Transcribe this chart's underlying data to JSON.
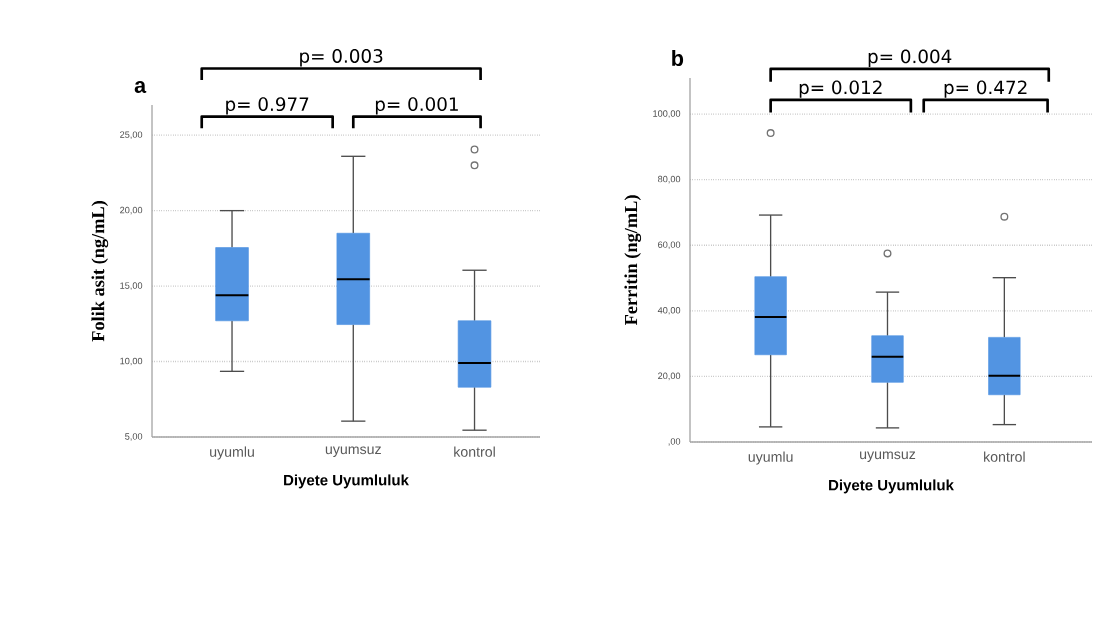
{
  "chart_data": [
    {
      "type": "box",
      "title": "a",
      "xlabel": "Diyete Uyumluluk",
      "ylabel": "Folik asit (ng/mL)",
      "categories": [
        "uyumlu",
        "uyumsuz",
        "kontrol"
      ],
      "series": [
        {
          "color": "#5294e2",
          "boxes": [
            {
              "low": 9.35,
              "q1": 12.7,
              "median": 14.4,
              "q3": 17.55,
              "high": 20.0
            },
            {
              "low": 6.05,
              "q1": 12.45,
              "median": 15.45,
              "q3": 18.5,
              "high": 23.6
            },
            {
              "low": 5.45,
              "q1": 8.3,
              "median": 9.9,
              "q3": 12.7,
              "high": 16.05,
              "outliers": [
                24.05,
                23.0
              ]
            }
          ]
        }
      ],
      "ylim": [
        5,
        27
      ],
      "yticks": [
        {
          "value": 5,
          "label": "5,00"
        },
        {
          "value": 10,
          "label": "10,00"
        },
        {
          "value": 15,
          "label": "15,00"
        },
        {
          "value": 20,
          "label": "20,00"
        },
        {
          "value": 25,
          "label": "25,00"
        }
      ],
      "grid": "y",
      "marker": "circle",
      "annotations": [
        "p= 0.003",
        "p= 0.977",
        "p= 0.001"
      ]
    },
    {
      "type": "box",
      "title": "b",
      "xlabel": "Diyete Uyumluluk",
      "ylabel": "Ferritin (ng/mL)",
      "categories": [
        "uyumlu",
        "uyumsuz",
        "kontrol"
      ],
      "series": [
        {
          "color": "#5294e2",
          "boxes": [
            {
              "low": 4.6,
              "q1": 26.6,
              "median": 38.1,
              "q3": 50.4,
              "high": 69.2,
              "outliers": [
                94.2
              ]
            },
            {
              "low": 4.3,
              "q1": 18.2,
              "median": 26.0,
              "q3": 32.4,
              "high": 45.7,
              "outliers": [
                57.5
              ]
            },
            {
              "low": 5.3,
              "q1": 14.4,
              "median": 20.2,
              "q3": 31.9,
              "high": 50.1,
              "outliers": [
                68.7
              ]
            }
          ]
        }
      ],
      "ylim": [
        0,
        111
      ],
      "yticks": [
        {
          "value": 0,
          "label": ",00"
        },
        {
          "value": 20,
          "label": "20,00"
        },
        {
          "value": 40,
          "label": "40,00"
        },
        {
          "value": 60,
          "label": "60,00"
        },
        {
          "value": 80,
          "label": "80,00"
        },
        {
          "value": 100,
          "label": "100,00"
        }
      ],
      "grid": "y",
      "marker": "circle",
      "annotations": [
        "p= 0.004",
        "p= 0.012",
        "p= 0.472"
      ]
    }
  ]
}
